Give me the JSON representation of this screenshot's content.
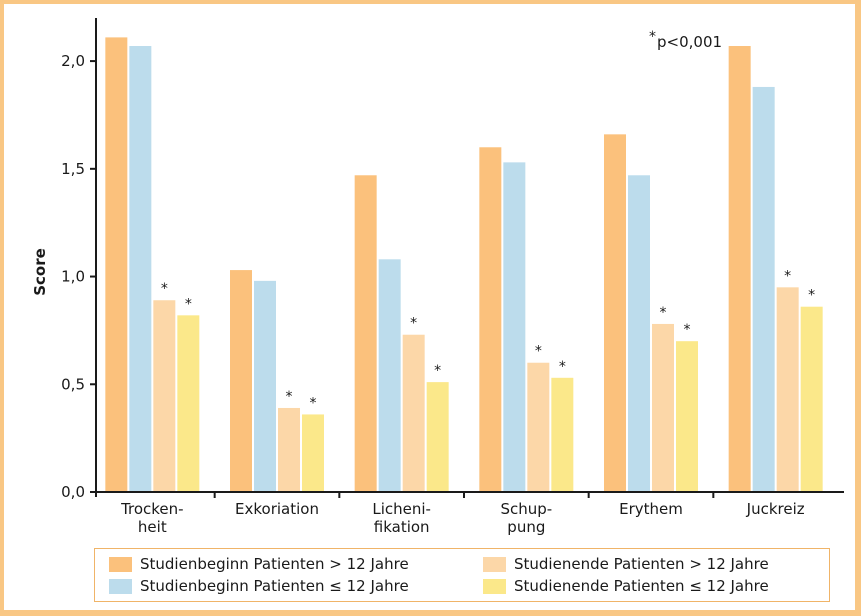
{
  "chart_data": {
    "type": "bar",
    "title": "",
    "xlabel": "",
    "ylabel": "Score",
    "ylim": [
      0,
      2.2
    ],
    "yticks": [
      "0,0",
      "0,5",
      "1,0",
      "1,5",
      "2,0"
    ],
    "ytick_values": [
      0,
      0.5,
      1.0,
      1.5,
      2.0
    ],
    "grid": false,
    "legend_position": "bottom",
    "annotation": "p<0,001",
    "annotation_marker": "*",
    "significance_marker": "*",
    "categories": [
      "Trocken-\nheit",
      "Exkoriation",
      "Licheni-\nfikation",
      "Schup-\npung",
      "Erythem",
      "Juckreiz"
    ],
    "series": [
      {
        "name": "Studienbeginn Patienten > 12 Jahre",
        "color": "#fbc17c",
        "values": [
          2.11,
          1.03,
          1.47,
          1.6,
          1.66,
          2.07
        ],
        "significant": [
          false,
          false,
          false,
          false,
          false,
          false
        ]
      },
      {
        "name": "Studienbeginn Patienten ≤ 12 Jahre",
        "color": "#bcdcec",
        "values": [
          2.07,
          0.98,
          1.08,
          1.53,
          1.47,
          1.88
        ],
        "significant": [
          false,
          false,
          false,
          false,
          false,
          false
        ]
      },
      {
        "name": "Studienende Patienten > 12 Jahre",
        "color": "#fcd7a8",
        "values": [
          0.89,
          0.39,
          0.73,
          0.6,
          0.78,
          0.95
        ],
        "significant": [
          true,
          true,
          true,
          true,
          true,
          true
        ]
      },
      {
        "name": "Studienende Patienten ≤ 12 Jahre",
        "color": "#fbe88a",
        "values": [
          0.82,
          0.36,
          0.51,
          0.53,
          0.7,
          0.86
        ],
        "significant": [
          true,
          true,
          true,
          true,
          true,
          true
        ]
      }
    ]
  }
}
